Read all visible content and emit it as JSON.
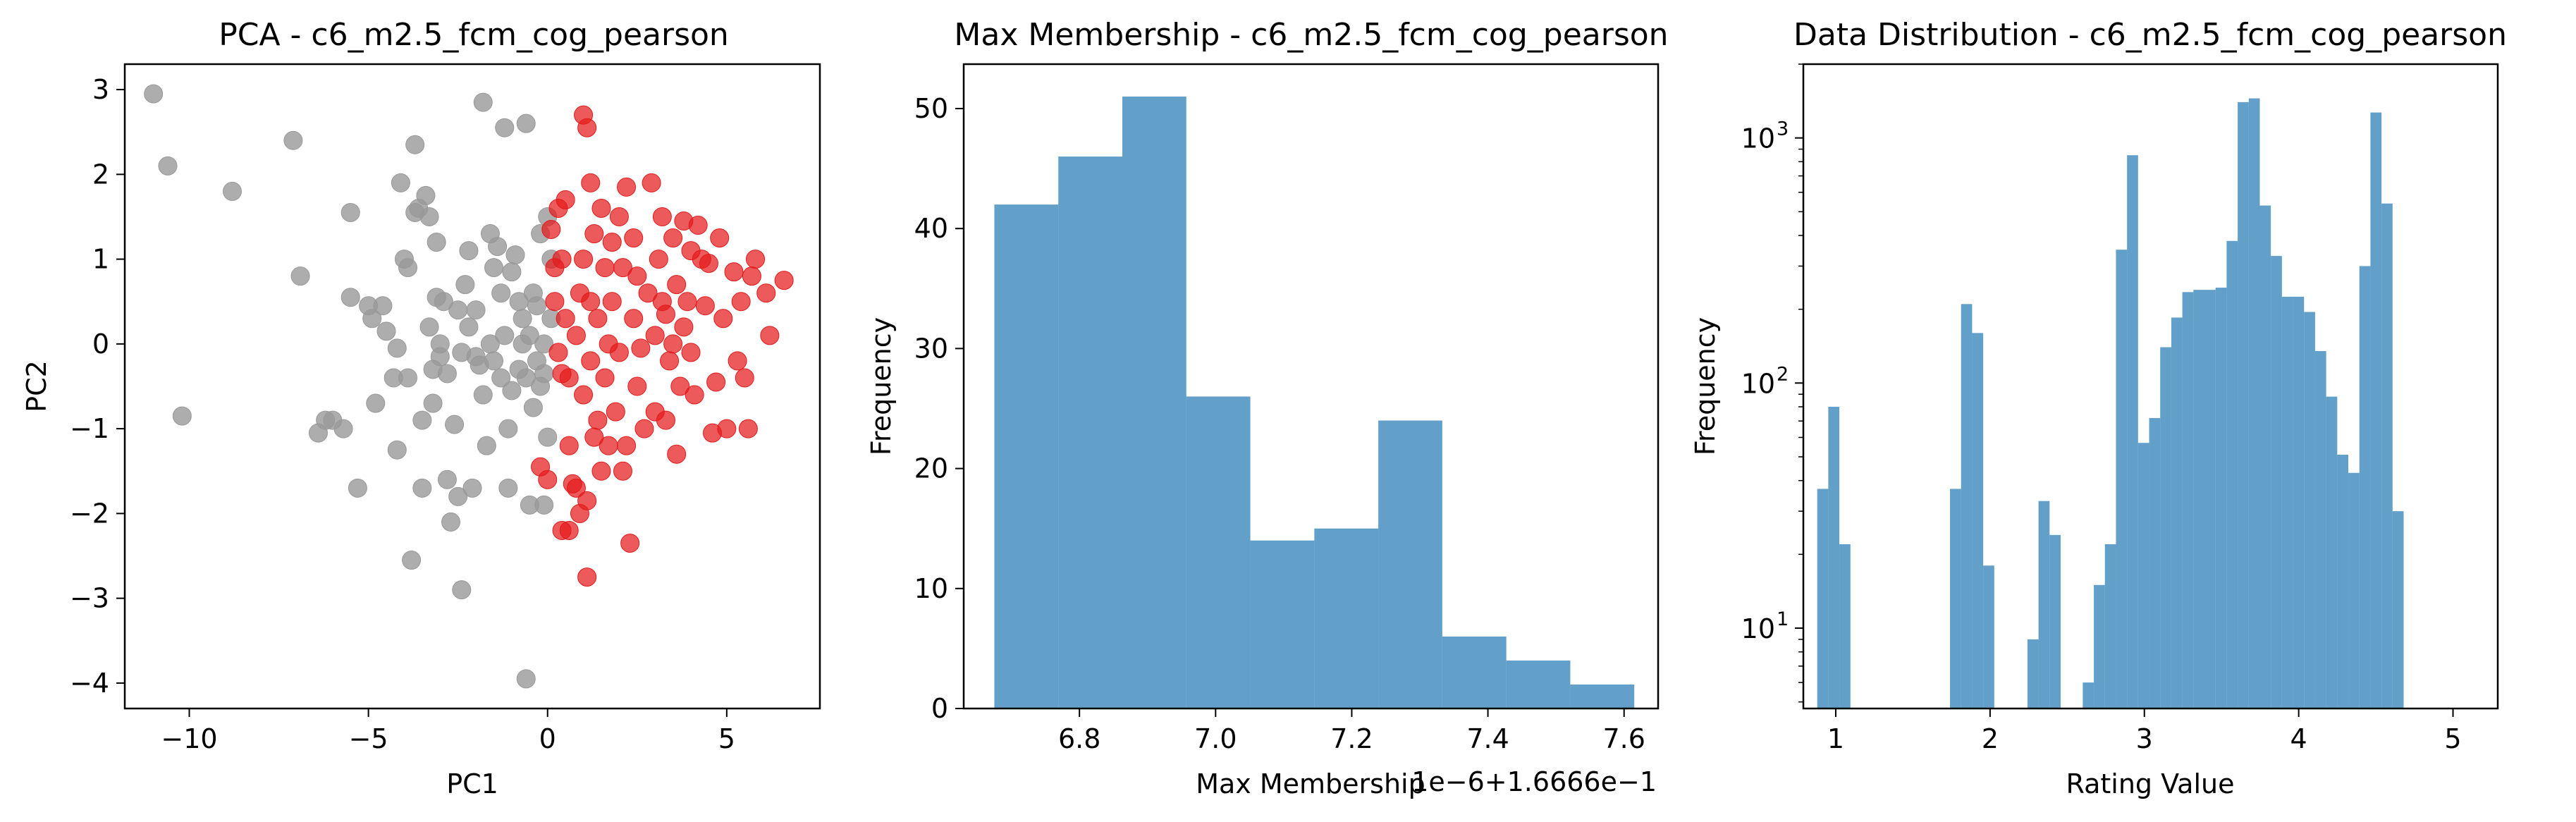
{
  "chart_data": [
    {
      "type": "scatter",
      "title": "PCA - c6_m2.5_fcm_cog_pearson",
      "xlabel": "PC1",
      "ylabel": "PC2",
      "xlim": [
        -11.8,
        7.6
      ],
      "ylim": [
        -4.3,
        3.3
      ],
      "xticks": [
        -10,
        -5,
        0,
        5
      ],
      "yticks": [
        -4,
        -3,
        -2,
        -1,
        0,
        1,
        2,
        3
      ],
      "series": [
        {
          "color": "#999999",
          "points": [
            [
              -11.0,
              2.95
            ],
            [
              -10.6,
              2.1
            ],
            [
              -8.8,
              1.8
            ],
            [
              -7.1,
              2.4
            ],
            [
              -6.9,
              0.8
            ],
            [
              -10.2,
              -0.85
            ],
            [
              -6.4,
              -1.05
            ],
            [
              -6.2,
              -0.9
            ],
            [
              -6.0,
              -0.9
            ],
            [
              -5.7,
              -1.0
            ],
            [
              -5.5,
              1.55
            ],
            [
              -5.5,
              0.55
            ],
            [
              -5.3,
              -1.7
            ],
            [
              -5.0,
              0.45
            ],
            [
              -4.9,
              0.3
            ],
            [
              -4.8,
              -0.7
            ],
            [
              -4.6,
              0.45
            ],
            [
              -4.5,
              0.15
            ],
            [
              -4.3,
              -0.4
            ],
            [
              -4.2,
              -1.25
            ],
            [
              -4.2,
              -0.05
            ],
            [
              -4.1,
              1.9
            ],
            [
              -4.0,
              1.0
            ],
            [
              -3.9,
              0.9
            ],
            [
              -3.9,
              -0.4
            ],
            [
              -3.8,
              -2.55
            ],
            [
              -3.7,
              1.55
            ],
            [
              -3.7,
              2.35
            ],
            [
              -3.6,
              1.6
            ],
            [
              -3.5,
              -0.9
            ],
            [
              -3.5,
              -1.7
            ],
            [
              -3.4,
              1.75
            ],
            [
              -3.3,
              0.2
            ],
            [
              -3.3,
              1.5
            ],
            [
              -3.2,
              -0.3
            ],
            [
              -3.2,
              -0.7
            ],
            [
              -3.1,
              1.2
            ],
            [
              -3.1,
              0.55
            ],
            [
              -3.0,
              0.0
            ],
            [
              -3.0,
              -0.15
            ],
            [
              -2.9,
              0.5
            ],
            [
              -2.8,
              -0.35
            ],
            [
              -2.8,
              -1.6
            ],
            [
              -2.7,
              -2.1
            ],
            [
              -2.6,
              -0.95
            ],
            [
              -2.5,
              -1.8
            ],
            [
              -2.5,
              0.4
            ],
            [
              -2.4,
              -2.9
            ],
            [
              -2.4,
              -0.1
            ],
            [
              -2.3,
              0.7
            ],
            [
              -2.2,
              1.1
            ],
            [
              -2.2,
              0.2
            ],
            [
              -2.1,
              -1.7
            ],
            [
              -2.0,
              0.4
            ],
            [
              -2.0,
              -0.15
            ],
            [
              -1.9,
              -0.25
            ],
            [
              -1.8,
              2.85
            ],
            [
              -1.8,
              -0.6
            ],
            [
              -1.7,
              -1.2
            ],
            [
              -1.6,
              1.3
            ],
            [
              -1.6,
              0.0
            ],
            [
              -1.5,
              0.9
            ],
            [
              -1.5,
              -0.2
            ],
            [
              -1.4,
              1.15
            ],
            [
              -1.3,
              0.6
            ],
            [
              -1.3,
              -0.4
            ],
            [
              -1.2,
              0.1
            ],
            [
              -1.2,
              2.55
            ],
            [
              -1.1,
              -1.0
            ],
            [
              -1.1,
              -1.7
            ],
            [
              -1.0,
              0.85
            ],
            [
              -1.0,
              -0.55
            ],
            [
              -0.9,
              1.05
            ],
            [
              -0.8,
              0.5
            ],
            [
              -0.8,
              -0.3
            ],
            [
              -0.7,
              0.3
            ],
            [
              -0.7,
              0.0
            ],
            [
              -0.6,
              -0.4
            ],
            [
              -0.6,
              2.6
            ],
            [
              -0.6,
              -3.95
            ],
            [
              -0.5,
              -1.9
            ],
            [
              -0.5,
              0.1
            ],
            [
              -0.4,
              0.6
            ],
            [
              -0.4,
              -0.75
            ],
            [
              -0.3,
              -0.2
            ],
            [
              -0.3,
              0.45
            ],
            [
              -0.2,
              -0.5
            ],
            [
              -0.2,
              1.3
            ],
            [
              -0.1,
              0.0
            ],
            [
              -0.1,
              -0.35
            ],
            [
              0.0,
              1.5
            ],
            [
              0.0,
              -1.1
            ],
            [
              -0.1,
              -1.9
            ],
            [
              0.1,
              0.3
            ],
            [
              0.1,
              1.0
            ]
          ]
        },
        {
          "color": "#e41a1c",
          "points": [
            [
              1.0,
              2.7
            ],
            [
              1.1,
              2.55
            ],
            [
              0.1,
              1.35
            ],
            [
              0.3,
              1.6
            ],
            [
              0.4,
              1.0
            ],
            [
              0.5,
              1.7
            ],
            [
              0.2,
              0.5
            ],
            [
              0.3,
              -0.1
            ],
            [
              0.4,
              -0.35
            ],
            [
              0.5,
              0.3
            ],
            [
              0.6,
              -0.4
            ],
            [
              0.6,
              -1.2
            ],
            [
              0.7,
              -1.65
            ],
            [
              0.4,
              -2.2
            ],
            [
              0.6,
              -2.2
            ],
            [
              0.8,
              -1.7
            ],
            [
              0.8,
              0.1
            ],
            [
              0.9,
              0.6
            ],
            [
              1.0,
              1.0
            ],
            [
              1.0,
              -0.6
            ],
            [
              1.1,
              -1.85
            ],
            [
              1.1,
              -2.75
            ],
            [
              1.2,
              0.5
            ],
            [
              1.2,
              -0.2
            ],
            [
              1.3,
              1.3
            ],
            [
              1.3,
              -1.1
            ],
            [
              1.4,
              0.3
            ],
            [
              1.4,
              -0.9
            ],
            [
              1.5,
              1.6
            ],
            [
              1.5,
              -1.5
            ],
            [
              1.6,
              0.9
            ],
            [
              1.6,
              -0.4
            ],
            [
              1.7,
              0.0
            ],
            [
              1.7,
              -1.2
            ],
            [
              1.8,
              1.2
            ],
            [
              1.8,
              0.5
            ],
            [
              1.9,
              -0.8
            ],
            [
              2.0,
              1.5
            ],
            [
              2.0,
              -0.1
            ],
            [
              2.1,
              0.9
            ],
            [
              2.2,
              1.85
            ],
            [
              2.2,
              -1.2
            ],
            [
              2.3,
              -2.35
            ],
            [
              2.4,
              0.3
            ],
            [
              2.4,
              1.25
            ],
            [
              2.5,
              -0.5
            ],
            [
              2.5,
              0.8
            ],
            [
              2.6,
              -0.05
            ],
            [
              2.7,
              -1.0
            ],
            [
              2.8,
              0.6
            ],
            [
              2.9,
              1.9
            ],
            [
              3.0,
              0.1
            ],
            [
              3.0,
              -0.8
            ],
            [
              3.1,
              1.0
            ],
            [
              3.2,
              0.5
            ],
            [
              3.2,
              1.5
            ],
            [
              3.3,
              -0.9
            ],
            [
              3.3,
              0.35
            ],
            [
              3.4,
              -0.2
            ],
            [
              3.5,
              1.25
            ],
            [
              3.5,
              0.0
            ],
            [
              3.6,
              0.7
            ],
            [
              3.7,
              -0.5
            ],
            [
              3.8,
              1.45
            ],
            [
              3.8,
              0.2
            ],
            [
              3.9,
              0.5
            ],
            [
              4.0,
              1.1
            ],
            [
              4.0,
              -0.1
            ],
            [
              4.1,
              -0.6
            ],
            [
              4.2,
              1.4
            ],
            [
              4.3,
              1.0
            ],
            [
              4.4,
              0.45
            ],
            [
              4.5,
              0.95
            ],
            [
              4.6,
              -1.05
            ],
            [
              4.7,
              -0.45
            ],
            [
              4.8,
              1.25
            ],
            [
              4.9,
              0.3
            ],
            [
              5.0,
              -1.0
            ],
            [
              5.2,
              0.85
            ],
            [
              5.3,
              -0.2
            ],
            [
              5.4,
              0.5
            ],
            [
              5.5,
              -0.4
            ],
            [
              5.6,
              -1.0
            ],
            [
              5.7,
              0.8
            ],
            [
              5.8,
              1.0
            ],
            [
              6.1,
              0.6
            ],
            [
              6.2,
              0.1
            ],
            [
              6.6,
              0.75
            ],
            [
              0.0,
              -1.6
            ],
            [
              0.2,
              0.9
            ],
            [
              -0.2,
              -1.45
            ],
            [
              0.9,
              -2.0
            ],
            [
              1.2,
              1.9
            ],
            [
              2.1,
              -1.5
            ],
            [
              3.6,
              -1.3
            ]
          ]
        }
      ]
    },
    {
      "type": "bar",
      "title": "Max Membership - c6_m2.5_fcm_cog_pearson",
      "xlabel": "Max Membership",
      "ylabel": "Frequency",
      "offset_text": "1e−6+1.6666e−1",
      "xlim": [
        6.63,
        7.65
      ],
      "ylim": [
        0,
        53.7
      ],
      "xticks": [
        6.8,
        7.0,
        7.2,
        7.4,
        7.6
      ],
      "xtick_labels": [
        "6.8",
        "7.0",
        "7.2",
        "7.4",
        "7.6"
      ],
      "yticks": [
        0,
        10,
        20,
        30,
        40,
        50
      ],
      "color": "#1f77b4",
      "bin_edges": [
        6.675,
        6.769,
        6.863,
        6.957,
        7.051,
        7.145,
        7.239,
        7.333,
        7.427,
        7.521,
        7.615
      ],
      "values": [
        42,
        46,
        51,
        26,
        14,
        15,
        24,
        6,
        4,
        2
      ]
    },
    {
      "type": "bar",
      "title": "Data Distribution - c6_m2.5_fcm_cog_pearson",
      "xlabel": "Rating Value",
      "ylabel": "Frequency",
      "yscale": "log",
      "xlim": [
        0.79,
        5.29
      ],
      "ylim": [
        4.7,
        2000
      ],
      "xticks": [
        1,
        2,
        3,
        4,
        5
      ],
      "yticks": [
        10,
        100,
        1000
      ],
      "ytick_labels": [
        [
          "10",
          "1"
        ],
        [
          "10",
          "2"
        ],
        [
          "10",
          "3"
        ]
      ],
      "color": "#1f77b4",
      "bin_start": 0.88,
      "bin_width": 0.0717,
      "values": [
        37,
        80,
        22,
        0,
        0,
        0,
        0,
        0,
        0,
        0,
        0,
        0,
        37,
        210,
        160,
        18,
        0,
        0,
        0,
        9,
        33,
        24,
        0,
        0,
        6,
        15,
        22,
        350,
        850,
        57,
        72,
        140,
        185,
        235,
        240,
        240,
        245,
        380,
        1400,
        1450,
        530,
        330,
        225,
        225,
        195,
        135,
        88,
        51,
        43,
        300,
        1270,
        540,
        30
      ]
    }
  ]
}
